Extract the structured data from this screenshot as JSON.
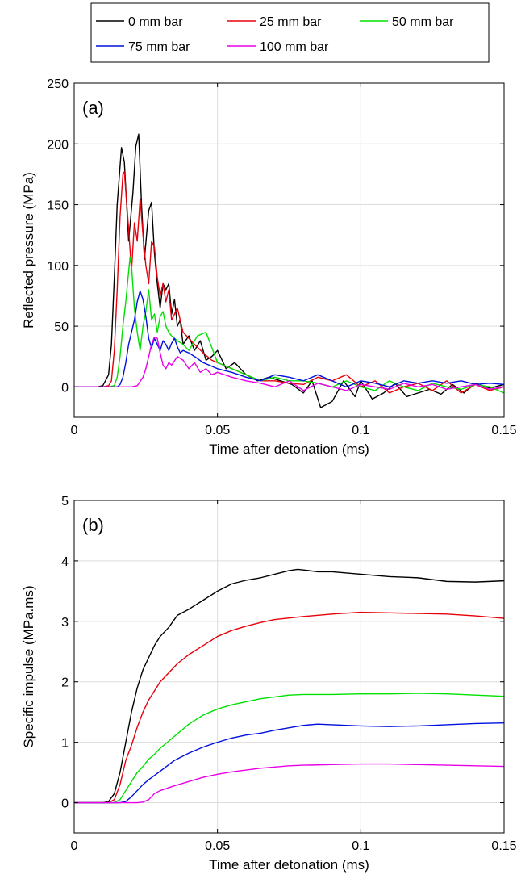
{
  "legend": {
    "entries": [
      {
        "label": "0 mm bar",
        "color": "#000000"
      },
      {
        "label": "25 mm bar",
        "color": "#e8000b"
      },
      {
        "label": "50 mm bar",
        "color": "#00e000"
      },
      {
        "label": "75 mm bar",
        "color": "#0010e0"
      },
      {
        "label": "100 mm bar",
        "color": "#e800e8"
      }
    ]
  },
  "chart_data": [
    {
      "type": "line",
      "panel_label": "(a)",
      "xlabel": "Time after detonation (ms)",
      "ylabel": "Reflected pressure (MPa)",
      "xlim": [
        0,
        0.15
      ],
      "ylim": [
        -25,
        250
      ],
      "xticks": [
        0,
        0.05,
        0.1,
        0.15
      ],
      "xtick_labels": [
        "0",
        "0.05",
        "0.1",
        "0.15"
      ],
      "yticks": [
        0,
        50,
        100,
        150,
        200,
        250
      ],
      "ytick_labels": [
        "0",
        "50",
        "100",
        "150",
        "200",
        "250"
      ],
      "grid": true,
      "series": [
        {
          "name": "0 mm bar",
          "color": "#000000",
          "x": [
            0,
            0.008,
            0.01,
            0.012,
            0.013,
            0.014,
            0.015,
            0.0165,
            0.0175,
            0.019,
            0.0205,
            0.0215,
            0.0225,
            0.0235,
            0.0245,
            0.026,
            0.027,
            0.028,
            0.029,
            0.03,
            0.031,
            0.032,
            0.033,
            0.034,
            0.035,
            0.036,
            0.037,
            0.038,
            0.04,
            0.042,
            0.044,
            0.046,
            0.048,
            0.05,
            0.053,
            0.056,
            0.06,
            0.064,
            0.068,
            0.072,
            0.076,
            0.08,
            0.083,
            0.086,
            0.09,
            0.094,
            0.098,
            0.1,
            0.104,
            0.108,
            0.112,
            0.116,
            0.12,
            0.124,
            0.128,
            0.132,
            0.136,
            0.14,
            0.145,
            0.15
          ],
          "y": [
            0,
            0,
            1,
            10,
            35,
            90,
            150,
            197,
            185,
            120,
            160,
            198,
            208,
            150,
            105,
            145,
            152,
            110,
            85,
            65,
            85,
            80,
            85,
            60,
            72,
            50,
            55,
            35,
            42,
            30,
            38,
            22,
            25,
            30,
            15,
            20,
            10,
            5,
            8,
            5,
            2,
            -5,
            5,
            -17,
            -12,
            5,
            -8,
            5,
            -10,
            -5,
            3,
            -8,
            -5,
            -2,
            -6,
            2,
            -5,
            3,
            -1,
            2
          ]
        },
        {
          "name": "25 mm bar",
          "color": "#e8000b",
          "x": [
            0,
            0.01,
            0.012,
            0.013,
            0.014,
            0.015,
            0.016,
            0.017,
            0.0175,
            0.019,
            0.02,
            0.021,
            0.022,
            0.023,
            0.024,
            0.025,
            0.026,
            0.027,
            0.028,
            0.029,
            0.03,
            0.031,
            0.032,
            0.033,
            0.034,
            0.036,
            0.038,
            0.04,
            0.042,
            0.045,
            0.048,
            0.05,
            0.055,
            0.06,
            0.065,
            0.07,
            0.075,
            0.08,
            0.085,
            0.09,
            0.095,
            0.1,
            0.105,
            0.11,
            0.115,
            0.12,
            0.125,
            0.13,
            0.135,
            0.14,
            0.145,
            0.15
          ],
          "y": [
            0,
            0,
            1,
            5,
            30,
            80,
            140,
            175,
            177,
            130,
            95,
            135,
            120,
            155,
            125,
            100,
            85,
            120,
            115,
            90,
            75,
            85,
            70,
            80,
            55,
            65,
            45,
            40,
            35,
            28,
            22,
            20,
            15,
            10,
            5,
            5,
            3,
            2,
            8,
            5,
            10,
            0,
            5,
            -5,
            0,
            3,
            -3,
            5,
            -5,
            2,
            -3,
            0
          ]
        },
        {
          "name": "50 mm bar",
          "color": "#00e000",
          "x": [
            0,
            0.012,
            0.014,
            0.015,
            0.016,
            0.017,
            0.018,
            0.019,
            0.0195,
            0.02,
            0.021,
            0.022,
            0.023,
            0.024,
            0.025,
            0.026,
            0.027,
            0.028,
            0.029,
            0.03,
            0.031,
            0.032,
            0.033,
            0.034,
            0.036,
            0.038,
            0.04,
            0.043,
            0.046,
            0.05,
            0.055,
            0.06,
            0.065,
            0.07,
            0.075,
            0.08,
            0.085,
            0.09,
            0.095,
            0.1,
            0.105,
            0.11,
            0.115,
            0.12,
            0.125,
            0.13,
            0.135,
            0.14,
            0.145,
            0.15
          ],
          "y": [
            0,
            0,
            1,
            8,
            25,
            50,
            70,
            95,
            107,
            100,
            65,
            45,
            30,
            50,
            62,
            80,
            55,
            60,
            45,
            58,
            62,
            50,
            45,
            42,
            38,
            35,
            30,
            42,
            45,
            20,
            15,
            10,
            5,
            8,
            5,
            5,
            3,
            0,
            5,
            0,
            -3,
            5,
            0,
            -3,
            3,
            0,
            -2,
            2,
            0,
            -5
          ]
        },
        {
          "name": "75 mm bar",
          "color": "#0010e0",
          "x": [
            0,
            0.015,
            0.016,
            0.017,
            0.018,
            0.019,
            0.02,
            0.021,
            0.022,
            0.023,
            0.024,
            0.025,
            0.026,
            0.027,
            0.028,
            0.029,
            0.03,
            0.031,
            0.032,
            0.033,
            0.034,
            0.035,
            0.036,
            0.037,
            0.038,
            0.04,
            0.042,
            0.045,
            0.05,
            0.055,
            0.06,
            0.065,
            0.07,
            0.075,
            0.08,
            0.085,
            0.09,
            0.095,
            0.1,
            0.105,
            0.11,
            0.115,
            0.12,
            0.125,
            0.13,
            0.135,
            0.14,
            0.145,
            0.15
          ],
          "y": [
            0,
            0,
            2,
            8,
            20,
            35,
            45,
            55,
            70,
            79,
            72,
            58,
            40,
            32,
            40,
            35,
            30,
            38,
            35,
            30,
            36,
            40,
            33,
            28,
            30,
            28,
            25,
            20,
            15,
            12,
            8,
            5,
            10,
            8,
            5,
            10,
            5,
            0,
            5,
            3,
            0,
            5,
            3,
            5,
            3,
            5,
            2,
            3,
            2
          ]
        },
        {
          "name": "100 mm bar",
          "color": "#e800e8",
          "x": [
            0,
            0.02,
            0.022,
            0.024,
            0.025,
            0.026,
            0.027,
            0.028,
            0.029,
            0.03,
            0.031,
            0.032,
            0.033,
            0.034,
            0.036,
            0.038,
            0.04,
            0.042,
            0.044,
            0.046,
            0.048,
            0.05,
            0.055,
            0.06,
            0.065,
            0.07,
            0.075,
            0.08,
            0.085,
            0.09,
            0.095,
            0.1,
            0.105,
            0.11,
            0.115,
            0.12,
            0.125,
            0.13,
            0.135,
            0.14,
            0.145,
            0.15
          ],
          "y": [
            0,
            0,
            1,
            8,
            15,
            25,
            35,
            41,
            40,
            28,
            18,
            15,
            20,
            18,
            25,
            22,
            15,
            20,
            12,
            15,
            10,
            12,
            8,
            5,
            3,
            0,
            5,
            -3,
            3,
            0,
            -3,
            2,
            0,
            -2,
            3,
            0,
            2,
            -2,
            0,
            2,
            -2,
            0
          ]
        }
      ]
    },
    {
      "type": "line",
      "panel_label": "(b)",
      "xlabel": "Time after detonation (ms)",
      "ylabel": "Specific impulse (MPa.ms)",
      "xlim": [
        0,
        0.15
      ],
      "ylim": [
        -0.5,
        5
      ],
      "xticks": [
        0,
        0.05,
        0.1,
        0.15
      ],
      "xtick_labels": [
        "0",
        "0.05",
        "0.1",
        "0.15"
      ],
      "yticks": [
        0,
        1,
        2,
        3,
        4,
        5
      ],
      "ytick_labels": [
        "0",
        "1",
        "2",
        "3",
        "4",
        "5"
      ],
      "grid": true,
      "series": [
        {
          "name": "0 mm bar",
          "color": "#000000",
          "x": [
            0,
            0.01,
            0.012,
            0.014,
            0.016,
            0.018,
            0.02,
            0.022,
            0.024,
            0.026,
            0.028,
            0.03,
            0.033,
            0.036,
            0.04,
            0.045,
            0.05,
            0.055,
            0.06,
            0.065,
            0.07,
            0.075,
            0.078,
            0.08,
            0.085,
            0.09,
            0.095,
            0.1,
            0.11,
            0.12,
            0.13,
            0.14,
            0.15
          ],
          "y": [
            0,
            0,
            0.02,
            0.15,
            0.5,
            1.0,
            1.5,
            1.9,
            2.2,
            2.4,
            2.6,
            2.75,
            2.9,
            3.1,
            3.2,
            3.35,
            3.5,
            3.62,
            3.68,
            3.72,
            3.78,
            3.84,
            3.86,
            3.85,
            3.82,
            3.82,
            3.8,
            3.78,
            3.74,
            3.72,
            3.66,
            3.65,
            3.67
          ]
        },
        {
          "name": "25 mm bar",
          "color": "#e8000b",
          "x": [
            0,
            0.012,
            0.014,
            0.016,
            0.018,
            0.02,
            0.022,
            0.024,
            0.026,
            0.028,
            0.03,
            0.033,
            0.036,
            0.04,
            0.045,
            0.05,
            0.055,
            0.06,
            0.065,
            0.07,
            0.08,
            0.09,
            0.1,
            0.11,
            0.12,
            0.13,
            0.14,
            0.15
          ],
          "y": [
            0,
            0,
            0.05,
            0.3,
            0.7,
            0.95,
            1.25,
            1.5,
            1.7,
            1.85,
            2.0,
            2.15,
            2.3,
            2.45,
            2.6,
            2.75,
            2.85,
            2.92,
            2.98,
            3.03,
            3.08,
            3.12,
            3.15,
            3.14,
            3.13,
            3.12,
            3.09,
            3.05
          ]
        },
        {
          "name": "50 mm bar",
          "color": "#00e000",
          "x": [
            0,
            0.014,
            0.016,
            0.018,
            0.02,
            0.022,
            0.024,
            0.026,
            0.028,
            0.03,
            0.035,
            0.04,
            0.045,
            0.05,
            0.055,
            0.06,
            0.065,
            0.07,
            0.075,
            0.08,
            0.09,
            0.1,
            0.11,
            0.12,
            0.13,
            0.14,
            0.15
          ],
          "y": [
            0,
            0,
            0.05,
            0.2,
            0.35,
            0.5,
            0.6,
            0.72,
            0.8,
            0.9,
            1.1,
            1.3,
            1.45,
            1.55,
            1.62,
            1.67,
            1.72,
            1.75,
            1.78,
            1.79,
            1.79,
            1.8,
            1.8,
            1.81,
            1.8,
            1.78,
            1.76
          ]
        },
        {
          "name": "75 mm bar",
          "color": "#0010e0",
          "x": [
            0,
            0.016,
            0.018,
            0.02,
            0.022,
            0.024,
            0.026,
            0.028,
            0.03,
            0.035,
            0.04,
            0.045,
            0.05,
            0.055,
            0.06,
            0.065,
            0.07,
            0.075,
            0.08,
            0.085,
            0.09,
            0.1,
            0.11,
            0.12,
            0.13,
            0.14,
            0.15
          ],
          "y": [
            0,
            0,
            0.02,
            0.1,
            0.2,
            0.3,
            0.38,
            0.45,
            0.52,
            0.7,
            0.82,
            0.92,
            1.0,
            1.07,
            1.12,
            1.15,
            1.2,
            1.24,
            1.28,
            1.3,
            1.29,
            1.27,
            1.26,
            1.27,
            1.29,
            1.31,
            1.32
          ]
        },
        {
          "name": "100 mm bar",
          "color": "#e800e8",
          "x": [
            0,
            0.022,
            0.024,
            0.026,
            0.028,
            0.03,
            0.035,
            0.04,
            0.045,
            0.05,
            0.055,
            0.06,
            0.065,
            0.07,
            0.075,
            0.08,
            0.09,
            0.1,
            0.11,
            0.12,
            0.13,
            0.14,
            0.15
          ],
          "y": [
            0,
            0,
            0.01,
            0.05,
            0.15,
            0.2,
            0.28,
            0.35,
            0.42,
            0.47,
            0.51,
            0.54,
            0.57,
            0.59,
            0.61,
            0.62,
            0.63,
            0.64,
            0.64,
            0.63,
            0.62,
            0.61,
            0.6
          ]
        }
      ]
    }
  ]
}
